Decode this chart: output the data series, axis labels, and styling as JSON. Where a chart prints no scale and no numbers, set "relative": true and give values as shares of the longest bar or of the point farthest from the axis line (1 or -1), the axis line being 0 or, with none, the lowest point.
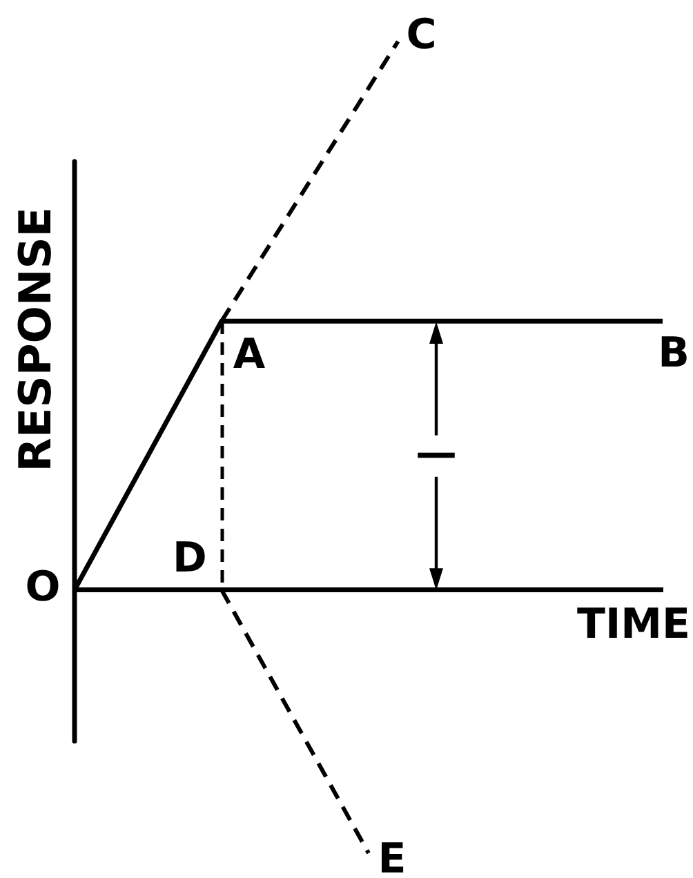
{
  "chart_data": {
    "type": "line",
    "xlabel": "TIME",
    "ylabel": "RESPONSE",
    "relative": true,
    "marker": "none",
    "annotations": [
      "O",
      "A",
      "B",
      "C",
      "D",
      "E",
      "—"
    ],
    "categories": [
      null,
      null,
      null,
      null,
      null,
      null,
      null,
      null,
      null,
      null,
      null,
      null,
      null,
      null,
      null,
      null,
      null,
      null,
      null,
      null,
      null
    ],
    "series": [
      {
        "color": "#000000",
        "line_style": "solid",
        "values": [
          0,
          null,
          null,
          null,
          null,
          0.49,
          null,
          null,
          null,
          null,
          null,
          null,
          null,
          null,
          null,
          null,
          null,
          null,
          null,
          null,
          0.49
        ]
      },
      {
        "color": "#000000",
        "line_style": "dashed",
        "values": [
          null,
          null,
          null,
          null,
          null,
          0.49,
          null,
          null,
          null,
          null,
          null,
          1,
          null,
          null,
          null,
          null,
          null,
          null,
          null,
          null,
          null
        ]
      },
      {
        "color": "#000000",
        "line_style": "dashed",
        "values": [
          null,
          null,
          null,
          null,
          null,
          0,
          null,
          null,
          null,
          null,
          -0.48,
          null,
          null,
          null,
          null,
          null,
          null,
          null,
          null,
          null,
          null
        ]
      }
    ]
  }
}
